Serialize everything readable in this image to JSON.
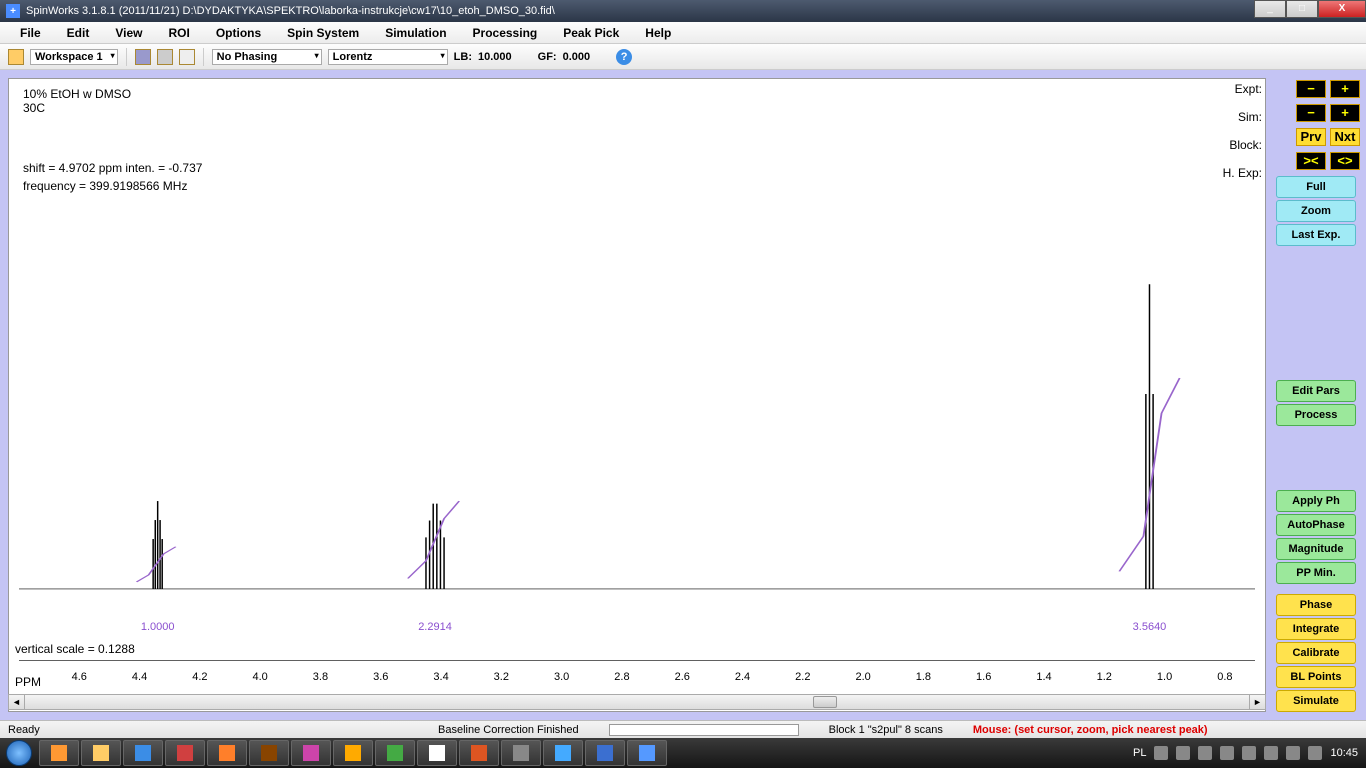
{
  "window": {
    "title": "SpinWorks 3.1.8.1 (2011/11/21)    D:\\DYDAKTYKA\\SPEKTRO\\laborka-instrukcje\\cw17\\10_etoh_DMSO_30.fid\\",
    "min": "_",
    "max": "□",
    "close": "X"
  },
  "menu": [
    "File",
    "Edit",
    "View",
    "ROI",
    "Options",
    "Spin System",
    "Simulation",
    "Processing",
    "Peak Pick",
    "Help"
  ],
  "toolbar": {
    "workspace": "Workspace 1",
    "phasing": "No Phasing",
    "apod": "Lorentz",
    "lb_label": "LB:",
    "lb_value": "10.000",
    "gf_label": "GF:",
    "gf_value": "0.000"
  },
  "plot": {
    "title1": "10% EtOH w DMSO",
    "title2": "30C",
    "shift_line": "shift = 4.9702 ppm   inten. = -0.737",
    "freq_line": "frequency = 399.9198566 MHz",
    "vscale": "vertical scale = 0.1288",
    "axis_label": "PPM",
    "xmin": 0.7,
    "xmax": 4.8,
    "xticks": [
      4.6,
      4.4,
      4.2,
      4.0,
      3.8,
      3.6,
      3.4,
      3.2,
      3.0,
      2.8,
      2.6,
      2.4,
      2.2,
      2.0,
      1.8,
      1.6,
      1.4,
      1.2,
      1.0,
      0.8
    ],
    "baseline_y": 0.86,
    "integral_color": "#9966cc",
    "spectrum_color": "#000000",
    "peaks": [
      {
        "ppm": 4.34,
        "height": 0.15,
        "lines": [
          -0.015,
          -0.008,
          0,
          0.008,
          0.015
        ],
        "label": "1.0000",
        "integral": [
          [
            -0.06,
            0.012
          ],
          [
            -0.02,
            0.01
          ],
          [
            0.03,
            0.004
          ],
          [
            0.07,
            0.002
          ]
        ]
      },
      {
        "ppm": 3.42,
        "height": 0.16,
        "lines": [
          -0.03,
          -0.018,
          -0.006,
          0.006,
          0.018,
          0.03
        ],
        "label": "2.2914",
        "integral": [
          [
            -0.08,
            0.025
          ],
          [
            -0.03,
            0.02
          ],
          [
            0.03,
            0.008
          ],
          [
            0.09,
            0.003
          ]
        ]
      },
      {
        "ppm": 1.05,
        "height": 0.52,
        "lines": [
          -0.012,
          0,
          0.012
        ],
        "label": "3.5640",
        "integral": [
          [
            -0.1,
            0.06
          ],
          [
            -0.04,
            0.05
          ],
          [
            0.02,
            0.015
          ],
          [
            0.1,
            0.005
          ]
        ]
      }
    ]
  },
  "rightlabels": [
    "Expt:",
    "Sim:",
    "Block:",
    "H. Exp:"
  ],
  "side": {
    "rows": [
      {
        "a": {
          "t": "−",
          "c": "blk"
        },
        "b": {
          "t": "+",
          "c": "blk"
        }
      },
      {
        "a": {
          "t": "−",
          "c": "blk"
        },
        "b": {
          "t": "+",
          "c": "blk"
        }
      },
      {
        "a": {
          "t": "Prv",
          "c": "yel"
        },
        "b": {
          "t": "Nxt",
          "c": "yel"
        }
      },
      {
        "a": {
          "t": "><",
          "c": "blk"
        },
        "b": {
          "t": "<>",
          "c": "blk"
        }
      }
    ],
    "group1": [
      "Full",
      "Zoom",
      "Last Exp."
    ],
    "group2": [
      "Edit Pars",
      "Process"
    ],
    "group3": [
      "Apply Ph",
      "AutoPhase",
      "Magnitude",
      "PP Min."
    ],
    "group4": [
      "Phase",
      "Integrate",
      "Calibrate",
      "BL Points",
      "Simulate"
    ]
  },
  "status": {
    "ready": "Ready",
    "msg": "Baseline Correction Finished",
    "block": "Block 1   \"s2pul\"   8 scans",
    "mouse": "Mouse:  (set cursor,  zoom,  pick nearest peak)"
  },
  "taskbar": {
    "items": [
      {
        "c": "#ff9933"
      },
      {
        "c": "#ffcc66"
      },
      {
        "c": "#3b8de6"
      },
      {
        "c": "#d04040"
      },
      {
        "c": "#ff7f2a"
      },
      {
        "c": "#884400"
      },
      {
        "c": "#cc44aa"
      },
      {
        "c": "#ffaa00"
      },
      {
        "c": "#44aa44"
      },
      {
        "c": "#ffffff"
      },
      {
        "c": "#dd5522"
      },
      {
        "c": "#888888"
      },
      {
        "c": "#44aaff"
      },
      {
        "c": "#3b6fd0"
      },
      {
        "c": "#5599ff"
      }
    ],
    "lang": "PL",
    "clock": "10:45"
  }
}
